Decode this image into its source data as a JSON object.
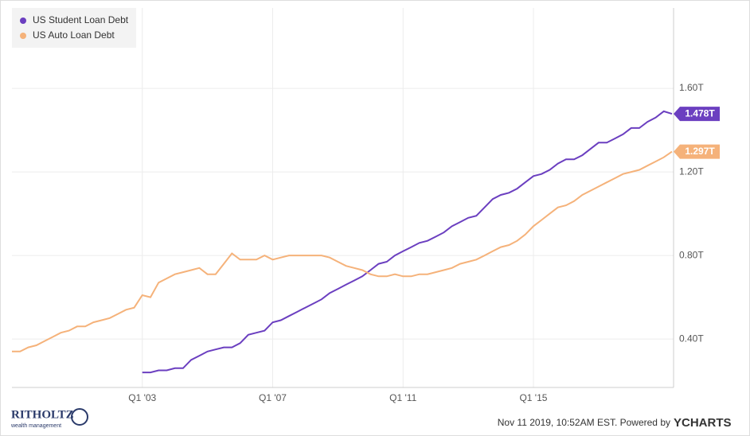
{
  "chart_data": {
    "type": "line",
    "x": [
      1999,
      1999.25,
      1999.5,
      1999.75,
      2000,
      2000.25,
      2000.5,
      2000.75,
      2001,
      2001.25,
      2001.5,
      2001.75,
      2002,
      2002.25,
      2002.5,
      2002.75,
      2003,
      2003.25,
      2003.5,
      2003.75,
      2004,
      2004.25,
      2004.5,
      2004.75,
      2005,
      2005.25,
      2005.5,
      2005.75,
      2006,
      2006.25,
      2006.5,
      2006.75,
      2007,
      2007.25,
      2007.5,
      2007.75,
      2008,
      2008.25,
      2008.5,
      2008.75,
      2009,
      2009.25,
      2009.5,
      2009.75,
      2010,
      2010.25,
      2010.5,
      2010.75,
      2011,
      2011.25,
      2011.5,
      2011.75,
      2012,
      2012.25,
      2012.5,
      2012.75,
      2013,
      2013.25,
      2013.5,
      2013.75,
      2014,
      2014.25,
      2014.5,
      2014.75,
      2015,
      2015.25,
      2015.5,
      2015.75,
      2016,
      2016.25,
      2016.5,
      2016.75,
      2017,
      2017.25,
      2017.5,
      2017.75,
      2018,
      2018.25,
      2018.5,
      2018.75,
      2019,
      2019.25
    ],
    "series": [
      {
        "name": "US Student Loan Debt",
        "color": "#6b3fc0",
        "values": [
          null,
          null,
          null,
          null,
          null,
          null,
          null,
          null,
          null,
          null,
          null,
          null,
          null,
          null,
          null,
          null,
          0.24,
          0.24,
          0.25,
          0.25,
          0.26,
          0.26,
          0.3,
          0.32,
          0.34,
          0.35,
          0.36,
          0.36,
          0.38,
          0.42,
          0.43,
          0.44,
          0.48,
          0.49,
          0.51,
          0.53,
          0.55,
          0.57,
          0.59,
          0.62,
          0.64,
          0.66,
          0.68,
          0.7,
          0.73,
          0.76,
          0.77,
          0.8,
          0.82,
          0.84,
          0.86,
          0.87,
          0.89,
          0.91,
          0.94,
          0.96,
          0.98,
          0.99,
          1.03,
          1.07,
          1.09,
          1.1,
          1.12,
          1.15,
          1.18,
          1.19,
          1.21,
          1.24,
          1.26,
          1.26,
          1.28,
          1.31,
          1.34,
          1.34,
          1.36,
          1.38,
          1.41,
          1.41,
          1.44,
          1.46,
          1.49,
          1.478
        ],
        "value_labels": [
          null,
          null,
          null,
          null,
          null,
          null,
          null,
          null,
          null,
          null,
          null,
          null,
          null,
          null,
          null,
          null,
          null,
          null,
          null,
          null,
          null,
          null,
          null,
          null,
          null,
          null,
          null,
          null,
          null,
          null,
          null,
          null,
          null,
          null,
          null,
          null,
          null,
          null,
          null,
          null,
          null,
          null,
          null,
          null,
          null,
          null,
          null,
          null,
          null,
          null,
          null,
          null,
          null,
          null,
          null,
          null,
          null,
          null,
          null,
          null,
          null,
          null,
          null,
          null,
          null,
          null,
          null,
          null,
          null,
          null,
          null,
          null,
          null,
          null,
          null,
          null,
          null,
          null,
          null,
          null,
          null,
          "1.478T"
        ]
      },
      {
        "name": "US Auto Loan Debt",
        "color": "#f5b27a",
        "values": [
          0.34,
          0.34,
          0.36,
          0.37,
          0.39,
          0.41,
          0.43,
          0.44,
          0.46,
          0.46,
          0.48,
          0.49,
          0.5,
          0.52,
          0.54,
          0.55,
          0.61,
          0.6,
          0.67,
          0.69,
          0.71,
          0.72,
          0.73,
          0.74,
          0.71,
          0.71,
          0.76,
          0.81,
          0.78,
          0.78,
          0.78,
          0.8,
          0.78,
          0.79,
          0.8,
          0.8,
          0.8,
          0.8,
          0.8,
          0.79,
          0.77,
          0.75,
          0.74,
          0.73,
          0.71,
          0.7,
          0.7,
          0.71,
          0.7,
          0.7,
          0.71,
          0.71,
          0.72,
          0.73,
          0.74,
          0.76,
          0.77,
          0.78,
          0.8,
          0.82,
          0.84,
          0.85,
          0.87,
          0.9,
          0.94,
          0.97,
          1.0,
          1.03,
          1.04,
          1.06,
          1.09,
          1.11,
          1.13,
          1.15,
          1.17,
          1.19,
          1.2,
          1.21,
          1.23,
          1.25,
          1.27,
          1.297
        ],
        "value_labels": [
          null,
          null,
          null,
          null,
          null,
          null,
          null,
          null,
          null,
          null,
          null,
          null,
          null,
          null,
          null,
          null,
          null,
          null,
          null,
          null,
          null,
          null,
          null,
          null,
          null,
          null,
          null,
          null,
          null,
          null,
          null,
          null,
          null,
          null,
          null,
          null,
          null,
          null,
          null,
          null,
          null,
          null,
          null,
          null,
          null,
          null,
          null,
          null,
          null,
          null,
          null,
          null,
          null,
          null,
          null,
          null,
          null,
          null,
          null,
          null,
          null,
          null,
          null,
          null,
          null,
          null,
          null,
          null,
          null,
          null,
          null,
          null,
          null,
          null,
          null,
          null,
          null,
          null,
          null,
          null,
          null,
          "1.297T"
        ]
      }
    ],
    "xlim": [
      1999,
      2019.3
    ],
    "xticks": [
      {
        "value": 2003,
        "label": "Q1 '03"
      },
      {
        "value": 2007,
        "label": "Q1 '07"
      },
      {
        "value": 2011,
        "label": "Q1 '11"
      },
      {
        "value": 2015,
        "label": "Q1 '15"
      }
    ],
    "ylim": [
      0.168,
      1.985
    ],
    "yticks": [
      {
        "value": 0.4,
        "label": "0.40T"
      },
      {
        "value": 0.8,
        "label": "0.80T"
      },
      {
        "value": 1.2,
        "label": "1.20T"
      },
      {
        "value": 1.6,
        "label": "1.60T"
      }
    ],
    "grid": true,
    "legend": "upper left"
  },
  "footer": {
    "brand": "RITHOLTZ",
    "brand_sub": "wealth management",
    "timestamp": "Nov 11 2019, 10:52AM EST. Powered by",
    "provider": "YCHARTS"
  }
}
